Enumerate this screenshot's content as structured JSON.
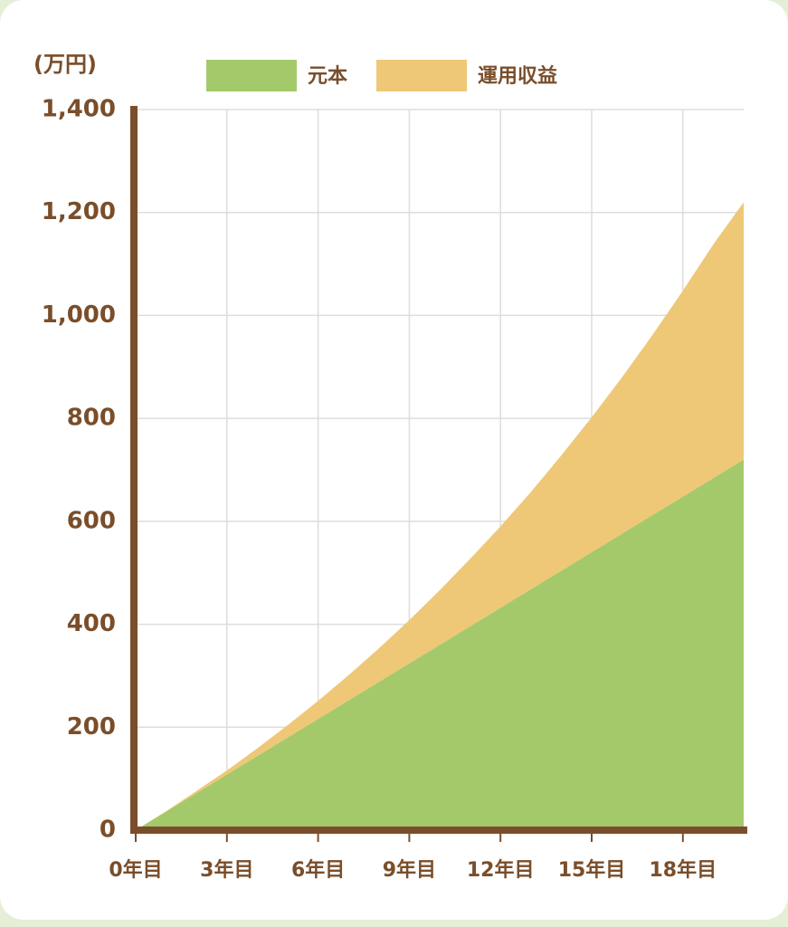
{
  "chart_data": {
    "type": "stacked_area",
    "y_label": "(万円)",
    "x": [
      0,
      1,
      2,
      3,
      4,
      5,
      6,
      7,
      8,
      9,
      10,
      11,
      12,
      13,
      14,
      15,
      16,
      17,
      18,
      19,
      20
    ],
    "series": [
      {
        "name": "元本",
        "color": "#a4c96b",
        "values": [
          0,
          36,
          72,
          108,
          144,
          180,
          216,
          252,
          288,
          324,
          360,
          396,
          432,
          468,
          504,
          540,
          576,
          612,
          648,
          684,
          720
        ]
      },
      {
        "name": "運用収益",
        "color": "#eec877",
        "values": [
          0,
          1,
          4,
          8,
          15,
          24,
          35,
          49,
          65,
          84,
          106,
          131,
          158,
          189,
          224,
          262,
          304,
          350,
          400,
          454,
          500
        ]
      }
    ],
    "xlim": [
      0,
      20
    ],
    "xticks": [
      {
        "value": 0,
        "label": "0年目"
      },
      {
        "value": 3,
        "label": "3年目"
      },
      {
        "value": 6,
        "label": "6年目"
      },
      {
        "value": 9,
        "label": "9年目"
      },
      {
        "value": 12,
        "label": "12年目"
      },
      {
        "value": 15,
        "label": "15年目"
      },
      {
        "value": 18,
        "label": "18年目"
      }
    ],
    "ylim": [
      0,
      1400
    ],
    "yticks": [
      0,
      200,
      400,
      600,
      800,
      {
        "value": 1000,
        "label": "1,000"
      },
      {
        "value": 1200,
        "label": "1,200"
      },
      {
        "value": 1400,
        "label": "1,400"
      }
    ],
    "grid": true,
    "axis_color": "#7a4e2a"
  }
}
